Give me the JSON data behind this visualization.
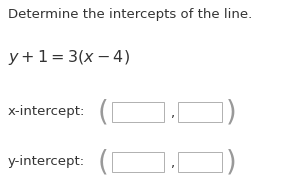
{
  "title": "Determine the intercepts of the line.",
  "equation": "$y + 1 = 3(x - 4)$",
  "x_label": "x-intercept:",
  "y_label": "y-intercept:",
  "bg_color": "#ffffff",
  "title_fontsize": 9.5,
  "eq_fontsize": 11.5,
  "label_fontsize": 9.5,
  "paren_fontsize": 20,
  "box_edge_color": "#b0b0b0",
  "box_face_color": "#ffffff",
  "paren_color": "#999999",
  "text_color": "#333333",
  "figsize": [
    2.86,
    1.95
  ],
  "dpi": 100
}
